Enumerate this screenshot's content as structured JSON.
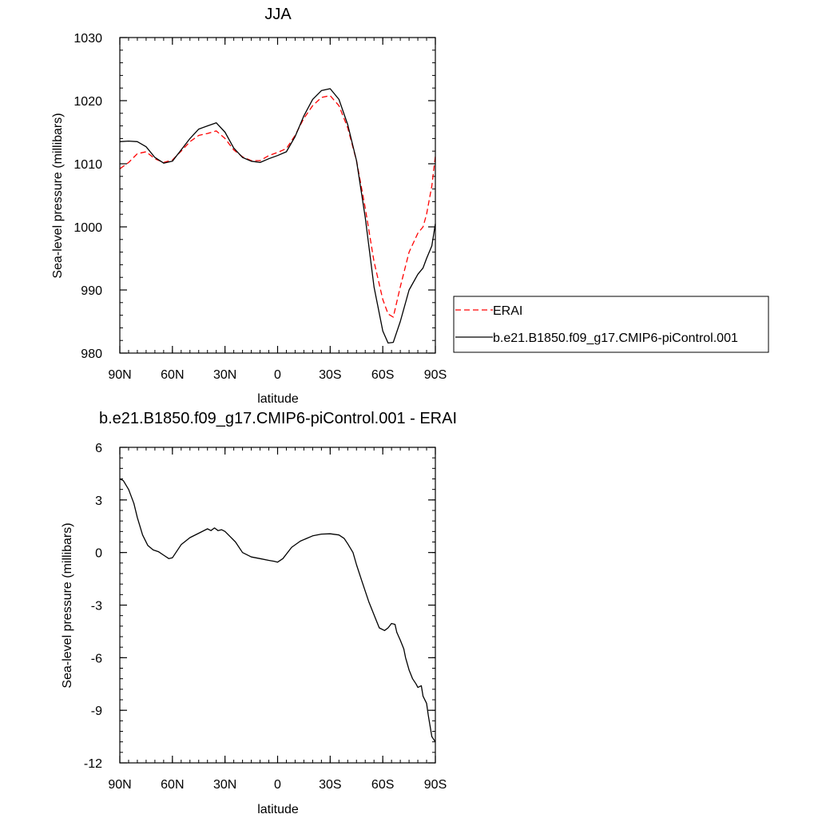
{
  "chart_data": [
    {
      "type": "line",
      "title": "JJA",
      "xlabel": "latitude",
      "ylabel": "Sea-level pressure (millibars)",
      "xlim": [
        -90,
        90
      ],
      "ylim": [
        980,
        1030
      ],
      "xtick_values": [
        -90,
        -60,
        -30,
        0,
        30,
        60,
        90
      ],
      "xtick_labels": [
        "90N",
        "60N",
        "30N",
        "0",
        "30S",
        "60S",
        "90S"
      ],
      "ytick_values": [
        980,
        990,
        1000,
        1010,
        1020,
        1030
      ],
      "ytick_labels": [
        "980",
        "990",
        "1000",
        "1010",
        "1020",
        "1030"
      ],
      "legend_position": "right, outside plot",
      "series": [
        {
          "name": "ERAI",
          "color": "#ff0000",
          "style": "dashed",
          "x": [
            -90,
            -85,
            -80,
            -75,
            -70,
            -65,
            -60,
            -55,
            -50,
            -45,
            -40,
            -35,
            -30,
            -25,
            -20,
            -15,
            -10,
            -5,
            0,
            5,
            10,
            15,
            20,
            25,
            30,
            35,
            40,
            45,
            50,
            55,
            60,
            63,
            66,
            70,
            75,
            80,
            83,
            85,
            88,
            90
          ],
          "y": [
            1009.2,
            1010.2,
            1011.6,
            1011.9,
            1010.8,
            1010.2,
            1010.6,
            1012.0,
            1013.5,
            1014.5,
            1014.8,
            1015.2,
            1014.0,
            1012.2,
            1011.1,
            1010.5,
            1010.5,
            1011.3,
            1011.8,
            1012.4,
            1014.5,
            1017.2,
            1019.2,
            1020.5,
            1020.8,
            1019.2,
            1015.7,
            1010.5,
            1003.0,
            994.5,
            988.5,
            986.2,
            985.7,
            990.5,
            996.0,
            999.0,
            1000.0,
            1002.0,
            1006.5,
            1011.2
          ]
        },
        {
          "name": "b.e21.B1850.f09_g17.CMIP6-piControl.001",
          "color": "#000000",
          "style": "solid",
          "x": [
            -90,
            -85,
            -80,
            -75,
            -70,
            -65,
            -60,
            -55,
            -50,
            -45,
            -40,
            -35,
            -30,
            -25,
            -20,
            -15,
            -10,
            -5,
            0,
            5,
            10,
            15,
            20,
            25,
            30,
            35,
            40,
            45,
            50,
            55,
            60,
            63,
            66,
            70,
            75,
            80,
            83,
            85,
            88,
            90
          ],
          "y": [
            1013.5,
            1013.6,
            1013.5,
            1012.7,
            1011.0,
            1010.1,
            1010.4,
            1012.2,
            1014.0,
            1015.5,
            1016.0,
            1016.5,
            1015.0,
            1012.5,
            1011.0,
            1010.4,
            1010.2,
            1010.8,
            1011.3,
            1011.9,
            1014.3,
            1017.6,
            1020.2,
            1021.6,
            1021.9,
            1020.2,
            1016.2,
            1010.5,
            1001.5,
            990.5,
            983.5,
            981.6,
            981.7,
            985.0,
            990.0,
            992.5,
            993.5,
            995.0,
            997.0,
            1000.5
          ]
        }
      ]
    },
    {
      "type": "line",
      "title": "b.e21.B1850.f09_g17.CMIP6-piControl.001 - ERAI",
      "xlabel": "latitude",
      "ylabel": "Sea-level pressure (millibars)",
      "xlim": [
        -90,
        90
      ],
      "ylim": [
        -12,
        6
      ],
      "xtick_values": [
        -90,
        -60,
        -30,
        0,
        30,
        60,
        90
      ],
      "xtick_labels": [
        "90N",
        "60N",
        "30N",
        "0",
        "30S",
        "60S",
        "90S"
      ],
      "ytick_values": [
        -12,
        -9,
        -6,
        -3,
        0,
        3,
        6
      ],
      "ytick_labels": [
        "-12",
        "-9",
        "-6",
        "-3",
        "0",
        "3",
        "6"
      ],
      "series": [
        {
          "color": "#000000",
          "style": "solid",
          "x": [
            -90,
            -88,
            -85,
            -82,
            -80,
            -77,
            -74,
            -71,
            -68,
            -65,
            -62,
            -60,
            -58,
            -55,
            -50,
            -45,
            -40,
            -38,
            -36,
            -34,
            -32,
            -30,
            -27,
            -24,
            -20,
            -15,
            -10,
            -5,
            -2,
            0,
            3,
            8,
            13,
            20,
            25,
            30,
            35,
            38,
            40,
            43,
            45,
            48,
            52,
            56,
            58,
            61,
            63,
            65,
            67,
            68,
            70,
            72,
            73,
            75,
            77,
            79,
            80,
            82,
            83,
            85,
            86,
            88,
            90
          ],
          "y": [
            4.2,
            4.1,
            3.6,
            2.8,
            2.0,
            1.0,
            0.4,
            0.15,
            0.05,
            -0.15,
            -0.35,
            -0.3,
            0.0,
            0.45,
            0.85,
            1.1,
            1.35,
            1.25,
            1.4,
            1.25,
            1.3,
            1.2,
            0.9,
            0.6,
            0.0,
            -0.25,
            -0.35,
            -0.45,
            -0.5,
            -0.55,
            -0.35,
            0.3,
            0.65,
            0.95,
            1.05,
            1.07,
            1.0,
            0.8,
            0.5,
            0.0,
            -0.7,
            -1.6,
            -2.8,
            -3.8,
            -4.3,
            -4.45,
            -4.3,
            -4.05,
            -4.1,
            -4.55,
            -5.0,
            -5.5,
            -6.0,
            -6.7,
            -7.2,
            -7.5,
            -7.7,
            -7.6,
            -8.2,
            -8.6,
            -9.3,
            -10.5,
            -10.8
          ]
        }
      ]
    }
  ]
}
